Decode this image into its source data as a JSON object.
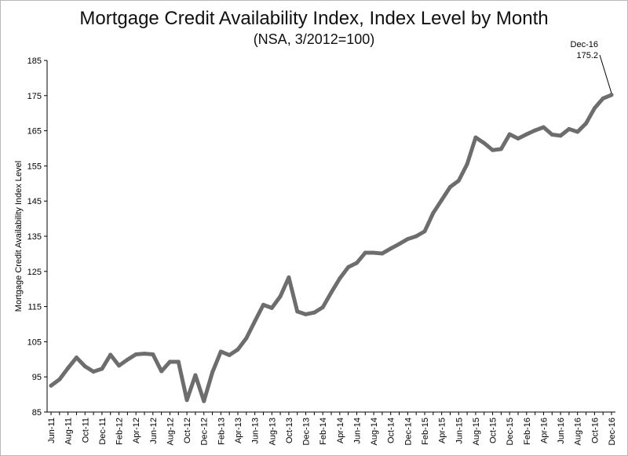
{
  "chart_data": {
    "type": "line",
    "title": "Mortgage Credit Availability Index, Index Level by Month",
    "subtitle": "(NSA, 3/2012=100)",
    "ylabel": "Mortgage Credit Availability Index Level",
    "xlabel": "",
    "ylim": [
      85,
      185
    ],
    "yticks": [
      85,
      95,
      105,
      115,
      125,
      135,
      145,
      155,
      165,
      175,
      185
    ],
    "x_tick_labels": [
      "Jun-11",
      "Aug-11",
      "Oct-11",
      "Dec-11",
      "Feb-12",
      "Apr-12",
      "Jun-12",
      "Aug-12",
      "Oct-12",
      "Dec-12",
      "Feb-13",
      "Apr-13",
      "Jun-13",
      "Aug-13",
      "Oct-13",
      "Dec-13",
      "Feb-14",
      "Apr-14",
      "Jun-14",
      "Aug-14",
      "Oct-14",
      "Dec-14",
      "Feb-15",
      "Apr-15",
      "Jun-15",
      "Aug-15",
      "Oct-15",
      "Dec-15",
      "Feb-16",
      "Apr-16",
      "Jun-16",
      "Aug-16",
      "Oct-16",
      "Dec-16"
    ],
    "x": [
      "Jun-11",
      "Jul-11",
      "Aug-11",
      "Sep-11",
      "Oct-11",
      "Nov-11",
      "Dec-11",
      "Jan-12",
      "Feb-12",
      "Mar-12",
      "Apr-12",
      "May-12",
      "Jun-12",
      "Jul-12",
      "Aug-12",
      "Sep-12",
      "Oct-12",
      "Nov-12",
      "Dec-12",
      "Jan-13",
      "Feb-13",
      "Mar-13",
      "Apr-13",
      "May-13",
      "Jun-13",
      "Jul-13",
      "Aug-13",
      "Sep-13",
      "Oct-13",
      "Nov-13",
      "Dec-13",
      "Jan-14",
      "Feb-14",
      "Mar-14",
      "Apr-14",
      "May-14",
      "Jun-14",
      "Jul-14",
      "Aug-14",
      "Sep-14",
      "Oct-14",
      "Nov-14",
      "Dec-14",
      "Jan-15",
      "Feb-15",
      "Mar-15",
      "Apr-15",
      "May-15",
      "Jun-15",
      "Jul-15",
      "Aug-15",
      "Sep-15",
      "Oct-15",
      "Nov-15",
      "Dec-15",
      "Jan-16",
      "Feb-16",
      "Mar-16",
      "Apr-16",
      "May-16",
      "Jun-16",
      "Jul-16",
      "Aug-16",
      "Sep-16",
      "Oct-16",
      "Nov-16",
      "Dec-16"
    ],
    "series": [
      {
        "values": [
          92.5,
          94.3,
          97.5,
          100.5,
          98.0,
          96.5,
          97.3,
          101.3,
          98.2,
          99.9,
          101.4,
          101.6,
          101.4,
          96.6,
          99.3,
          99.3,
          88.4,
          95.5,
          88.1,
          96.3,
          102.2,
          101.2,
          102.8,
          106.0,
          110.8,
          115.5,
          114.6,
          117.9,
          123.3,
          113.6,
          112.8,
          113.3,
          114.8,
          119.0,
          123.0,
          126.2,
          127.4,
          130.3,
          130.3,
          130.1,
          131.5,
          132.8,
          134.2,
          135.0,
          136.4,
          141.6,
          145.3,
          149.0,
          150.8,
          155.5,
          163.1,
          161.5,
          159.5,
          159.8,
          164.0,
          162.8,
          164.0,
          165.1,
          166.0,
          163.9,
          163.6,
          165.5,
          164.7,
          167.1,
          171.4,
          174.2,
          175.2
        ],
        "color": "#6d6d6d"
      }
    ],
    "annotation": {
      "label": "Dec-16",
      "value": "175.2"
    },
    "grid": false,
    "legend": "none"
  }
}
